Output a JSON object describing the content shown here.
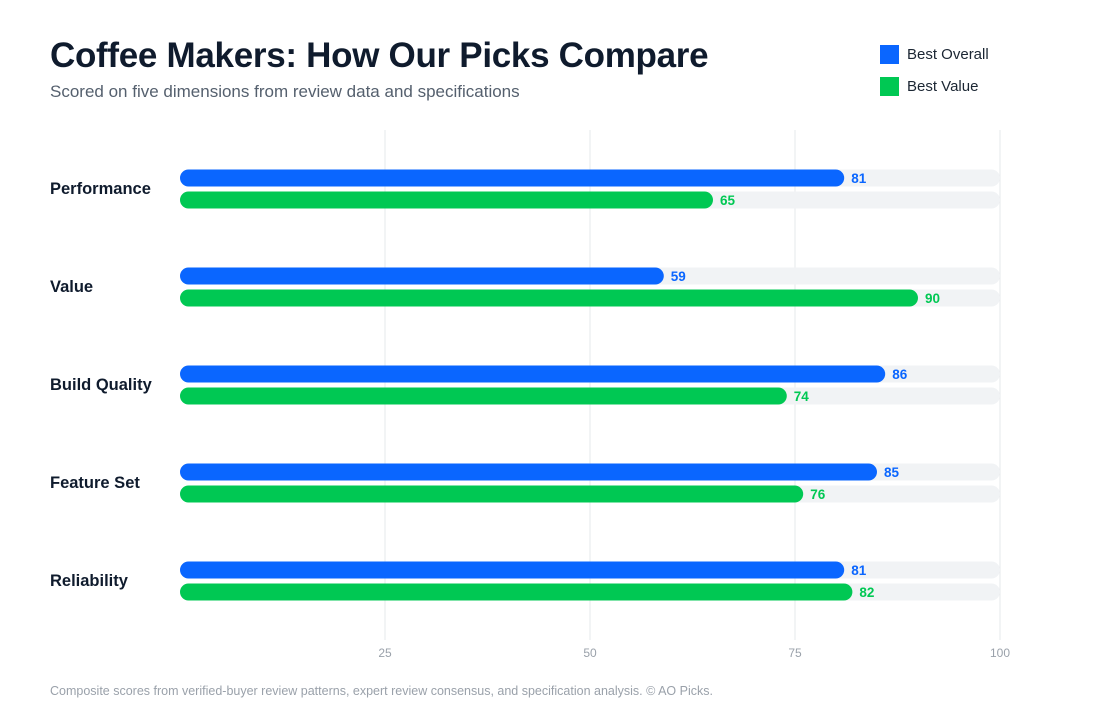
{
  "header": {
    "title": "Coffee Makers: How Our Picks Compare",
    "subtitle": "Scored on five dimensions from review data and specifications"
  },
  "legend": {
    "items": [
      {
        "label": "Best Overall",
        "color": "#0a66ff"
      },
      {
        "label": "Best Value",
        "color": "#00c853"
      }
    ]
  },
  "chart_data": {
    "type": "bar",
    "orientation": "horizontal",
    "categories": [
      "Performance",
      "Value",
      "Build Quality",
      "Feature Set",
      "Reliability"
    ],
    "series": [
      {
        "name": "Best Overall",
        "color": "#0a66ff",
        "values": [
          81,
          59,
          86,
          85,
          81
        ]
      },
      {
        "name": "Best Value",
        "color": "#00c853",
        "values": [
          65,
          90,
          74,
          76,
          82
        ]
      }
    ],
    "xlim": [
      0,
      100
    ],
    "xticks": [
      25,
      50,
      75,
      100
    ],
    "grid": true,
    "legend_position": "top-right",
    "track_color": "#f1f3f5"
  },
  "footnote": "Composite scores from verified-buyer review patterns, expert review consensus, and specification analysis. © AO Picks."
}
